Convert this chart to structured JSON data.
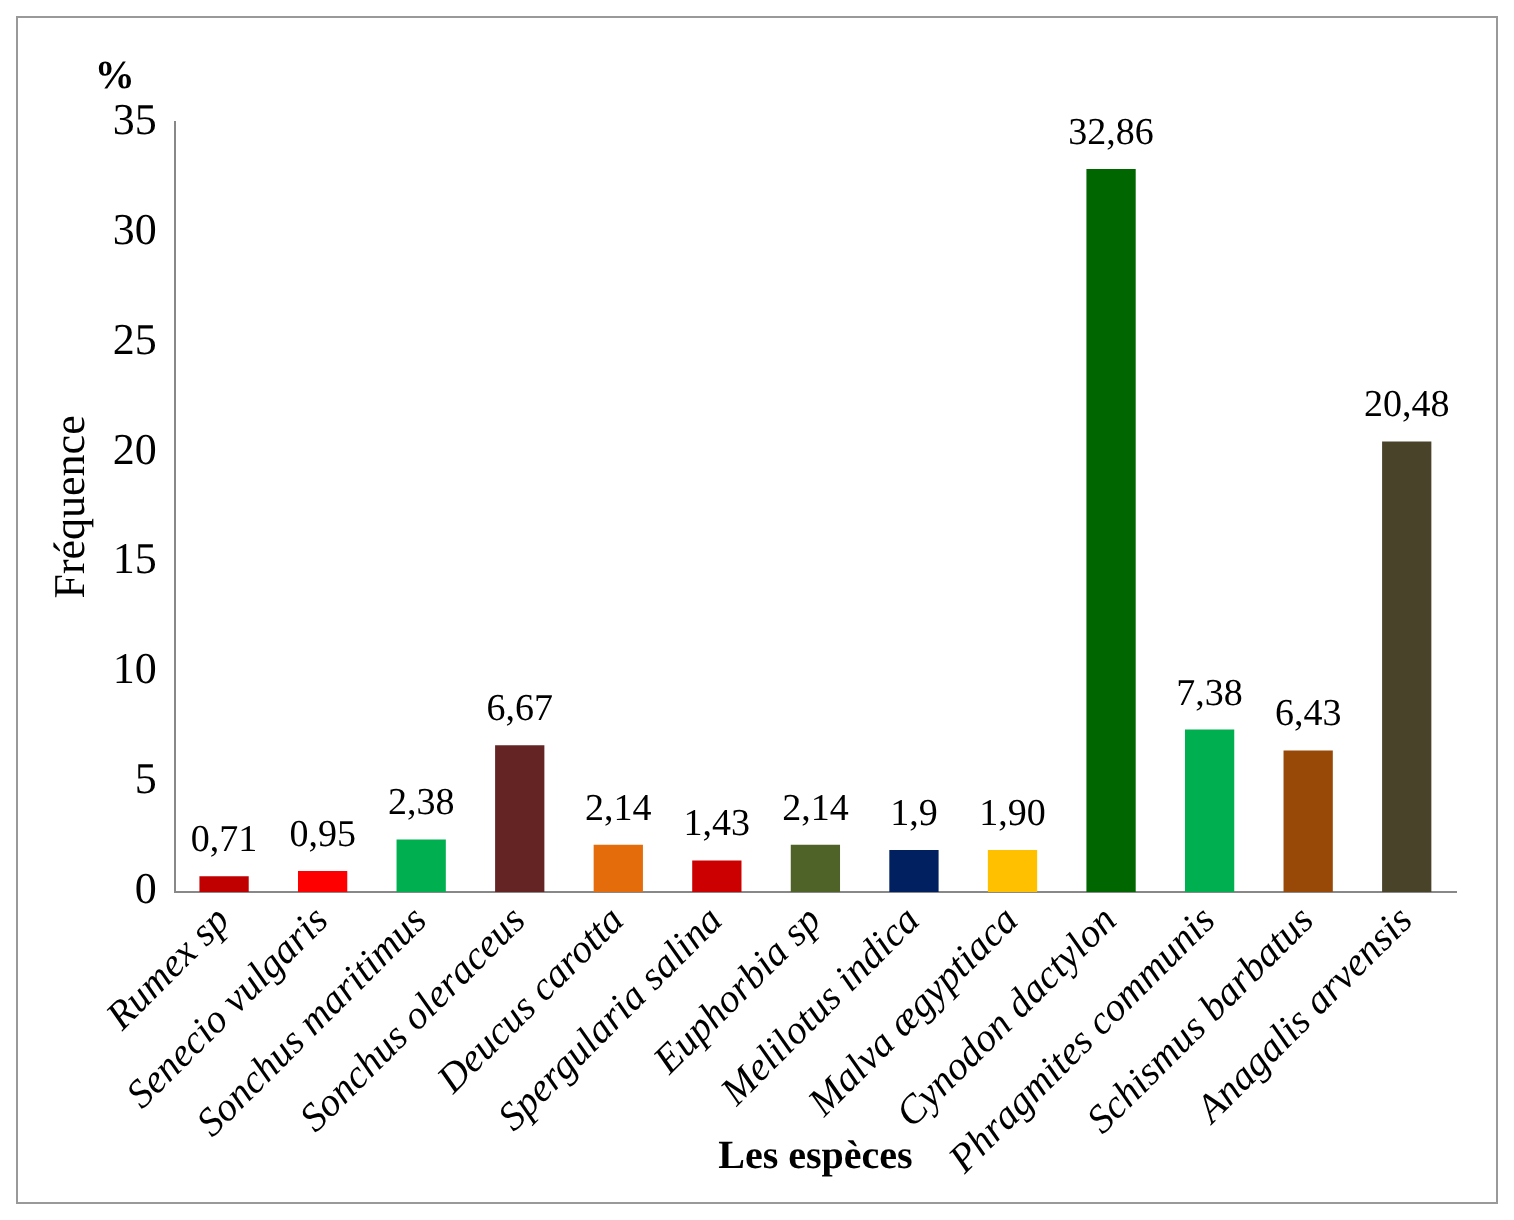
{
  "chart_data": {
    "type": "bar",
    "xlabel": "Les espèces",
    "ylabel": "Fréquence",
    "annotations": [
      "%"
    ],
    "categories": [
      "Rumex sp",
      "Senecio vulgaris",
      "Sonchus maritimus",
      "Sonchus oleraceus",
      "Deucus carotta",
      "Spergularia salina",
      "Euphorbia sp",
      "Melilotus indica",
      "Malva ægyptiaca",
      "Cynodon dactylon",
      "Phragmites communis",
      "Schismus barbatus",
      "Anagalis arvensis"
    ],
    "values": [
      0.71,
      0.95,
      2.38,
      6.67,
      2.14,
      1.43,
      2.14,
      1.9,
      1.9,
      32.86,
      7.38,
      6.43,
      20.48
    ],
    "value_labels": [
      "0,71",
      "0,95",
      "2,38",
      "6,67",
      "2,14",
      "1,43",
      "2,14",
      "1,9",
      "1,90",
      "32,86",
      "7,38",
      "6,43",
      "20,48"
    ],
    "colors": [
      "#c00000",
      "#ff0000",
      "#00b050",
      "#632423",
      "#e46c0a",
      "#cc0000",
      "#4f6228",
      "#002060",
      "#ffc000",
      "#006600",
      "#00b050",
      "#984807",
      "#494429"
    ],
    "ylim": [
      0,
      35
    ],
    "yticks": [
      0,
      5,
      10,
      15,
      20,
      25,
      30,
      35
    ],
    "grid": false,
    "legend": false
  }
}
